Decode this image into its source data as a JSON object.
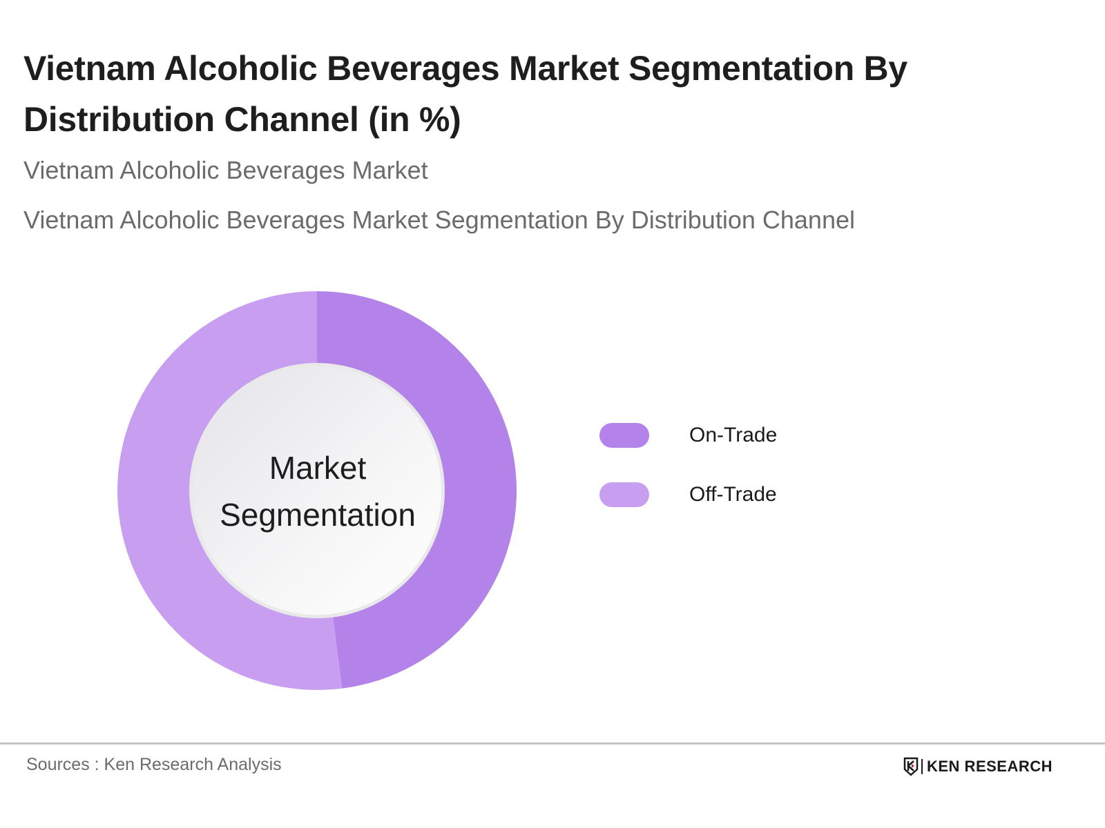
{
  "header": {
    "title": "Vietnam Alcoholic Beverages Market  Segmentation By Distribution Channel (in %)",
    "subtitle_1": "Vietnam Alcoholic Beverages Market",
    "subtitle_2": "Vietnam Alcoholic Beverages Market Segmentation By Distribution Channel"
  },
  "chart_data": {
    "type": "pie",
    "variant": "donut",
    "title": "Vietnam Alcoholic Beverages Market  Segmentation By Distribution Channel (in %)",
    "center_label": [
      "Market",
      "Segmentation"
    ],
    "categories": [
      "On-Trade",
      "Off-Trade"
    ],
    "values": [
      48,
      52
    ],
    "colors": [
      "#b483ea",
      "#c89ef0"
    ],
    "legend_position": "right",
    "data_labels_shown": false
  },
  "legend": {
    "items": [
      {
        "label": "On-Trade",
        "color": "#b483ea"
      },
      {
        "label": "Off-Trade",
        "color": "#c89ef0"
      }
    ]
  },
  "footer": {
    "source": "Sources : Ken Research Analysis",
    "brand": "KEN RESEARCH"
  }
}
